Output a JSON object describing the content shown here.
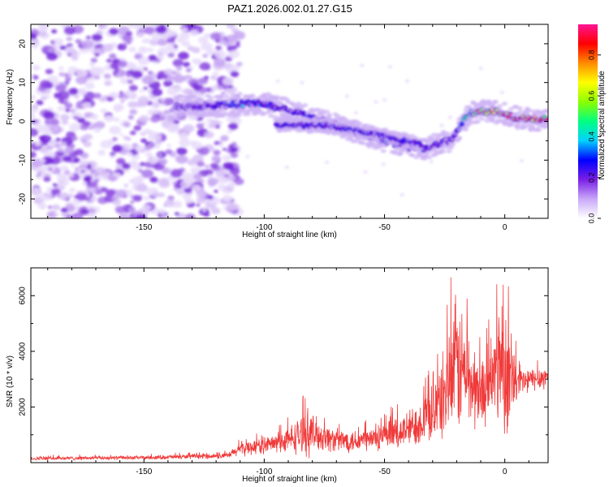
{
  "title": "PAZ1.2026.002.01.27.G15",
  "colors": {
    "line": "#f03a3a",
    "axis": "#000000",
    "colormap": [
      "#ffffff",
      "#c8a8f8",
      "#7a1ee6",
      "#0000ff",
      "#00d2ff",
      "#00ff80",
      "#8cff00",
      "#ffff00",
      "#ff8c00",
      "#ff0000",
      "#ff1493"
    ]
  },
  "chart_data": [
    {
      "type": "heatmap",
      "name": "spectrogram",
      "xlabel": "Height of straight line (km)",
      "ylabel": "Frequency (Hz)",
      "xlim": [
        -197,
        18
      ],
      "ylim": [
        -25,
        25
      ],
      "xticks": [
        -150,
        -100,
        -50,
        0
      ],
      "xtick_labels": [
        "-150",
        "-100",
        "-50",
        "0"
      ],
      "yticks": [
        -20,
        -10,
        0,
        10,
        20
      ],
      "ytick_labels": [
        "-20",
        "-10",
        "0",
        "10",
        "20"
      ],
      "colorbar": {
        "label": "Normalized spectral amplitude",
        "range": [
          0.0,
          0.95
        ],
        "ticks": [
          0.0,
          0.2,
          0.4,
          0.6,
          0.8
        ],
        "tick_labels": [
          "0.0",
          "0.2",
          "0.4",
          "0.6",
          "0.8"
        ]
      },
      "noise_region": {
        "x": [
          -197,
          -110
        ],
        "y": [
          -25,
          25
        ],
        "level": 0.05
      },
      "ridge": {
        "x": [
          -137,
          -130,
          -120,
          -110,
          -100,
          -90,
          -80,
          -70,
          -60,
          -50,
          -40,
          -33,
          -25,
          -22,
          -15,
          -10,
          -5,
          0,
          5,
          10,
          18
        ],
        "y": [
          4,
          4,
          4,
          4.5,
          4.5,
          3,
          1,
          -1,
          -3,
          -5,
          -6.5,
          -7,
          -5,
          -5,
          2,
          2.5,
          2.5,
          2,
          1,
          0.5,
          0.5
        ],
        "amp": [
          0.1,
          0.18,
          0.25,
          0.35,
          0.3,
          0.28,
          0.25,
          0.27,
          0.3,
          0.32,
          0.32,
          0.3,
          0.2,
          0.2,
          0.5,
          0.75,
          0.9,
          0.85,
          0.9,
          0.92,
          0.9
        ]
      },
      "secondary_ridge": {
        "x": [
          -95,
          -85,
          -75,
          -65,
          -55,
          -45,
          -35
        ],
        "y": [
          -1,
          -1,
          -1,
          -2,
          -3,
          -4.5,
          -6
        ]
      }
    },
    {
      "type": "line",
      "name": "snr",
      "xlabel": "Height of straight line (km)",
      "ylabel": "SNR (10 * v/v)",
      "xlim": [
        -197,
        18
      ],
      "ylim": [
        0,
        7000
      ],
      "xticks": [
        -150,
        -100,
        -50,
        0
      ],
      "xtick_labels": [
        "-150",
        "-100",
        "-50",
        "0"
      ],
      "yticks": [
        2000,
        4000,
        6000
      ],
      "ytick_labels": [
        "2000",
        "4000",
        "6000"
      ],
      "envelope": {
        "x": [
          -197,
          -150,
          -115,
          -110,
          -102,
          -95,
          -90,
          -85,
          -82,
          -78,
          -70,
          -60,
          -50,
          -40,
          -35,
          -28,
          -24,
          -20,
          -17,
          -13,
          -10,
          -5,
          -2,
          0,
          2,
          5,
          8,
          12,
          18
        ],
        "mean": [
          150,
          180,
          250,
          500,
          600,
          700,
          800,
          1000,
          1100,
          1000,
          800,
          800,
          900,
          1200,
          1500,
          2000,
          2700,
          3500,
          3300,
          2700,
          2500,
          3000,
          3800,
          3500,
          3000,
          2800,
          2900,
          3000,
          3100
        ],
        "spread": [
          80,
          80,
          120,
          300,
          350,
          400,
          550,
          800,
          1000,
          700,
          500,
          500,
          600,
          800,
          1000,
          1400,
          2200,
          3000,
          2500,
          1800,
          1500,
          1500,
          3000,
          3000,
          2000,
          1000,
          600,
          500,
          500
        ]
      }
    }
  ]
}
